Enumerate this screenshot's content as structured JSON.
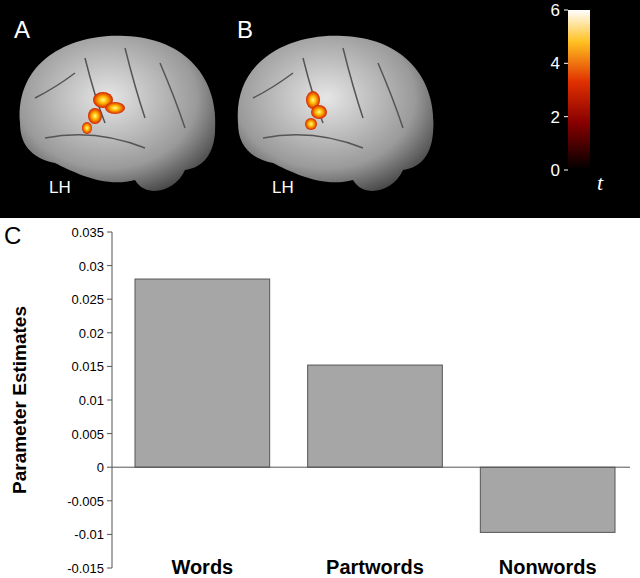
{
  "chart_data": {
    "type": "bar",
    "panel_label": "C",
    "y_label": "Parameter Estimates",
    "categories": [
      "Words",
      "Partwords",
      "Nonwords"
    ],
    "values": [
      0.028,
      0.0152,
      -0.0097
    ],
    "color": "#a6a6a6",
    "ylim": [
      -0.015,
      0.035
    ],
    "yticks": [
      -0.015,
      -0.01,
      -0.005,
      0,
      0.005,
      0.01,
      0.015,
      0.02,
      0.025,
      0.03,
      0.035
    ]
  },
  "brain_panels": [
    {
      "label": "A",
      "hemisphere": "LH"
    },
    {
      "label": "B",
      "hemisphere": "LH"
    }
  ],
  "colorbar": {
    "title": "t",
    "range": [
      0,
      6
    ],
    "ticks": [
      0,
      2,
      4,
      6
    ]
  }
}
